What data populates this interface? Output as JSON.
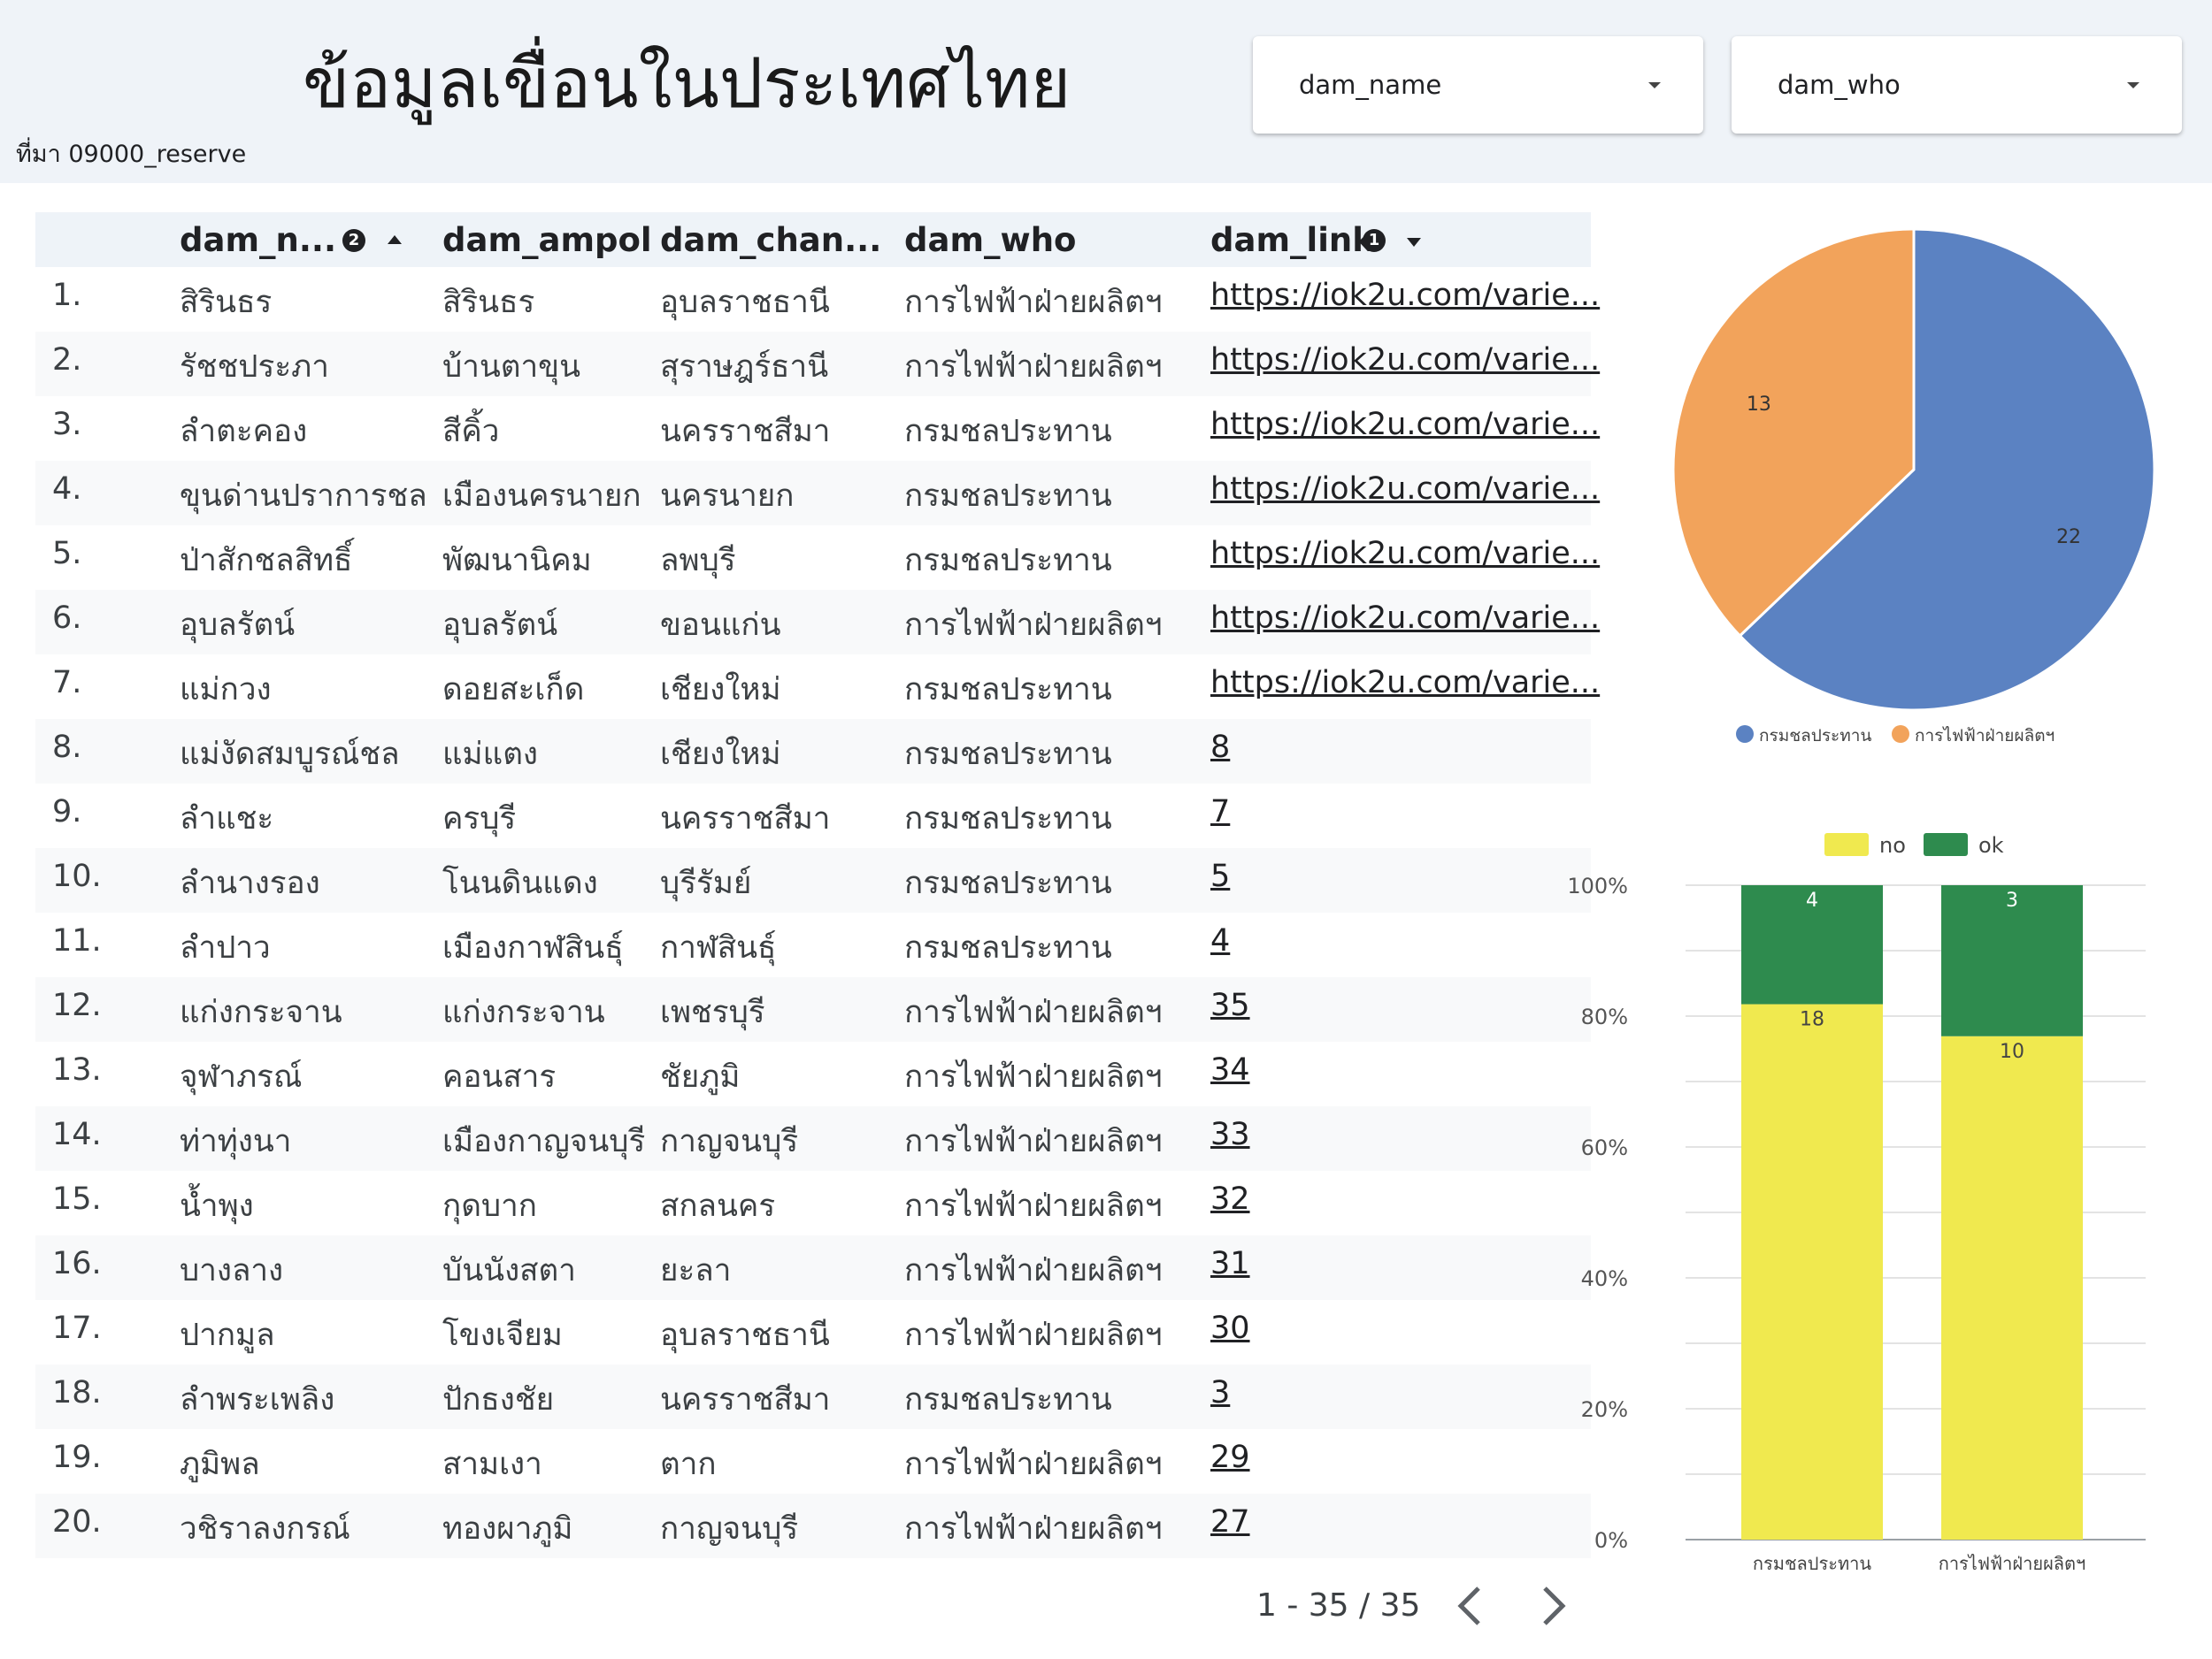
{
  "header": {
    "title": "ข้อมูลเขื่อนในประเทศไทย",
    "source_label": "ที่มา 09000_reserve"
  },
  "filters": [
    {
      "label": "dam_name"
    },
    {
      "label": "dam_who"
    }
  ],
  "table": {
    "columns": [
      {
        "label": "dam_n...",
        "badge": "2",
        "sort": "asc"
      },
      {
        "label": "dam_ampol"
      },
      {
        "label": "dam_chan..."
      },
      {
        "label": "dam_who"
      },
      {
        "label": "dam_link",
        "badge": "1",
        "sort": "desc"
      }
    ],
    "rows": [
      {
        "idx": "1.",
        "name": "สิรินธร",
        "ampol": "สิรินธร",
        "chan": "อุบลราชธานี",
        "who": "การไฟฟ้าฝ่ายผลิตฯ",
        "link": "https://iok2u.com/varie..."
      },
      {
        "idx": "2.",
        "name": "รัชชประภา",
        "ampol": "บ้านตาขุน",
        "chan": "สุราษฎร์ธานี",
        "who": "การไฟฟ้าฝ่ายผลิตฯ",
        "link": "https://iok2u.com/varie..."
      },
      {
        "idx": "3.",
        "name": "ลำตะคอง",
        "ampol": "สีคิ้ว",
        "chan": "นครราชสีมา",
        "who": "กรมชลประทาน",
        "link": "https://iok2u.com/varie..."
      },
      {
        "idx": "4.",
        "name": "ขุนด่านปราการชล",
        "ampol": "เมืองนครนายก",
        "chan": "นครนายก",
        "who": "กรมชลประทาน",
        "link": "https://iok2u.com/varie..."
      },
      {
        "idx": "5.",
        "name": "ป่าสักชลสิทธิ์",
        "ampol": "พัฒนานิคม",
        "chan": "ลพบุรี",
        "who": "กรมชลประทาน",
        "link": "https://iok2u.com/varie..."
      },
      {
        "idx": "6.",
        "name": "อุบลรัตน์",
        "ampol": "อุบลรัตน์",
        "chan": "ขอนแก่น",
        "who": "การไฟฟ้าฝ่ายผลิตฯ",
        "link": "https://iok2u.com/varie..."
      },
      {
        "idx": "7.",
        "name": "แม่กวง",
        "ampol": "ดอยสะเก็ด",
        "chan": "เชียงใหม่",
        "who": "กรมชลประทาน",
        "link": "https://iok2u.com/varie..."
      },
      {
        "idx": "8.",
        "name": "แม่งัดสมบูรณ์ชล",
        "ampol": "แม่แตง",
        "chan": "เชียงใหม่",
        "who": "กรมชลประทาน",
        "link": "8"
      },
      {
        "idx": "9.",
        "name": "ลำแชะ",
        "ampol": "ครบุรี",
        "chan": "นครราชสีมา",
        "who": "กรมชลประทาน",
        "link": "7"
      },
      {
        "idx": "10.",
        "name": "ลำนางรอง",
        "ampol": "โนนดินแดง",
        "chan": "บุรีรัมย์",
        "who": "กรมชลประทาน",
        "link": "5"
      },
      {
        "idx": "11.",
        "name": "ลำปาว",
        "ampol": "เมืองกาฬสินธุ์",
        "chan": "กาฬสินธุ์",
        "who": "กรมชลประทาน",
        "link": "4"
      },
      {
        "idx": "12.",
        "name": "แก่งกระจาน",
        "ampol": "แก่งกระจาน",
        "chan": "เพชรบุรี",
        "who": "การไฟฟ้าฝ่ายผลิตฯ",
        "link": "35"
      },
      {
        "idx": "13.",
        "name": "จุฬาภรณ์",
        "ampol": "คอนสาร",
        "chan": "ชัยภูมิ",
        "who": "การไฟฟ้าฝ่ายผลิตฯ",
        "link": "34"
      },
      {
        "idx": "14.",
        "name": "ท่าทุ่งนา",
        "ampol": "เมืองกาญจนบุรี",
        "chan": "กาญจนบุรี",
        "who": "การไฟฟ้าฝ่ายผลิตฯ",
        "link": "33"
      },
      {
        "idx": "15.",
        "name": "น้ำพุง",
        "ampol": "กุดบาก",
        "chan": "สกลนคร",
        "who": "การไฟฟ้าฝ่ายผลิตฯ",
        "link": "32"
      },
      {
        "idx": "16.",
        "name": "บางลาง",
        "ampol": "บันนังสตา",
        "chan": "ยะลา",
        "who": "การไฟฟ้าฝ่ายผลิตฯ",
        "link": "31"
      },
      {
        "idx": "17.",
        "name": "ปากมูล",
        "ampol": "โขงเจียม",
        "chan": "อุบลราชธานี",
        "who": "การไฟฟ้าฝ่ายผลิตฯ",
        "link": "30"
      },
      {
        "idx": "18.",
        "name": "ลำพระเพลิง",
        "ampol": "ปักธงชัย",
        "chan": "นครราชสีมา",
        "who": "กรมชลประทาน",
        "link": "3"
      },
      {
        "idx": "19.",
        "name": "ภูมิพล",
        "ampol": "สามเงา",
        "chan": "ตาก",
        "who": "การไฟฟ้าฝ่ายผลิตฯ",
        "link": "29"
      },
      {
        "idx": "20.",
        "name": "วชิราลงกรณ์",
        "ampol": "ทองผาภูมิ",
        "chan": "กาญจนบุรี",
        "who": "การไฟฟ้าฝ่ายผลิตฯ",
        "link": "27"
      }
    ]
  },
  "pagination": {
    "label": "1 - 35 / 35",
    "prev_icon": "chevron-left-icon",
    "next_icon": "chevron-right-icon"
  },
  "colors": {
    "blue": "#5b82c2",
    "orange": "#f2a35b",
    "yellow": "#f0e94f",
    "green": "#2e8b4e"
  },
  "chart_data": [
    {
      "type": "pie",
      "categories": [
        "กรมชลประทาน",
        "การไฟฟ้าฝ่ายผลิตฯ"
      ],
      "values": [
        22,
        13
      ],
      "colors": [
        "#5b82c2",
        "#f2a35b"
      ],
      "legend_position": "bottom"
    },
    {
      "type": "bar",
      "stacked": "percent",
      "categories": [
        "กรมชลประทาน",
        "การไฟฟ้าฝ่ายผลิตฯ"
      ],
      "series": [
        {
          "name": "no",
          "values": [
            18,
            10
          ],
          "color": "#f0e94f"
        },
        {
          "name": "ok",
          "values": [
            4,
            3
          ],
          "color": "#2e8b4e"
        }
      ],
      "yticks": [
        "0%",
        "20%",
        "40%",
        "60%",
        "80%",
        "100%"
      ],
      "ylim": [
        0,
        100
      ],
      "grid": true,
      "legend_position": "top"
    }
  ]
}
